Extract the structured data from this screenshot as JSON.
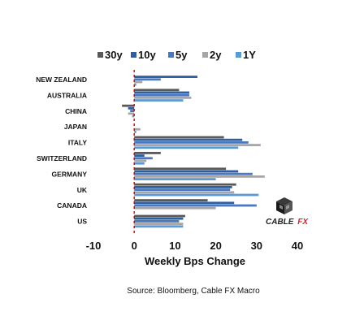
{
  "chart_data": {
    "type": "bar",
    "orientation": "horizontal",
    "categories": [
      "NEW ZEALAND",
      "AUSTRALIA",
      "CHINA",
      "JAPAN",
      "ITALY",
      "SWITZERLAND",
      "GERMANY",
      "UK",
      "CANADA",
      "US"
    ],
    "series": [
      {
        "name": "30y",
        "color": "#595959",
        "values": [
          0,
          11,
          -3,
          0,
          22,
          6.5,
          22.5,
          25,
          18,
          12.5
        ]
      },
      {
        "name": "10y",
        "color": "#2e5f9e",
        "values": [
          15.5,
          13.5,
          -1.5,
          0,
          26.5,
          2.5,
          25.5,
          24,
          24.5,
          12
        ]
      },
      {
        "name": "5y",
        "color": "#4a78c0",
        "values": [
          6.5,
          13.5,
          -1,
          0,
          28,
          4.5,
          29,
          23.5,
          30,
          11
        ]
      },
      {
        "name": "2y",
        "color": "#a6a6a6",
        "values": [
          2,
          14,
          -1.5,
          1.5,
          31,
          3,
          32,
          24.5,
          20,
          12
        ]
      },
      {
        "name": "1Y",
        "color": "#5b9bd5",
        "values": [
          0.5,
          12,
          -0.5,
          0.5,
          25.5,
          2.5,
          20,
          30.5,
          0,
          12
        ]
      }
    ],
    "xlabel": "Weekly Bps Change",
    "ylabel": "",
    "xlim": [
      -10,
      40
    ],
    "ticks": [
      -10,
      0,
      10,
      20,
      30,
      40
    ],
    "tick_labels": [
      "-10",
      "0",
      "10",
      "20",
      "30",
      "40"
    ],
    "legend_position": "top",
    "grid": false,
    "zero_line_color": "#cc0000"
  },
  "source": "Source: Bloomberg, Cable FX Macro",
  "logo": {
    "word1": "CABLE",
    "word2": "FX",
    "icon": "cube-icon"
  }
}
